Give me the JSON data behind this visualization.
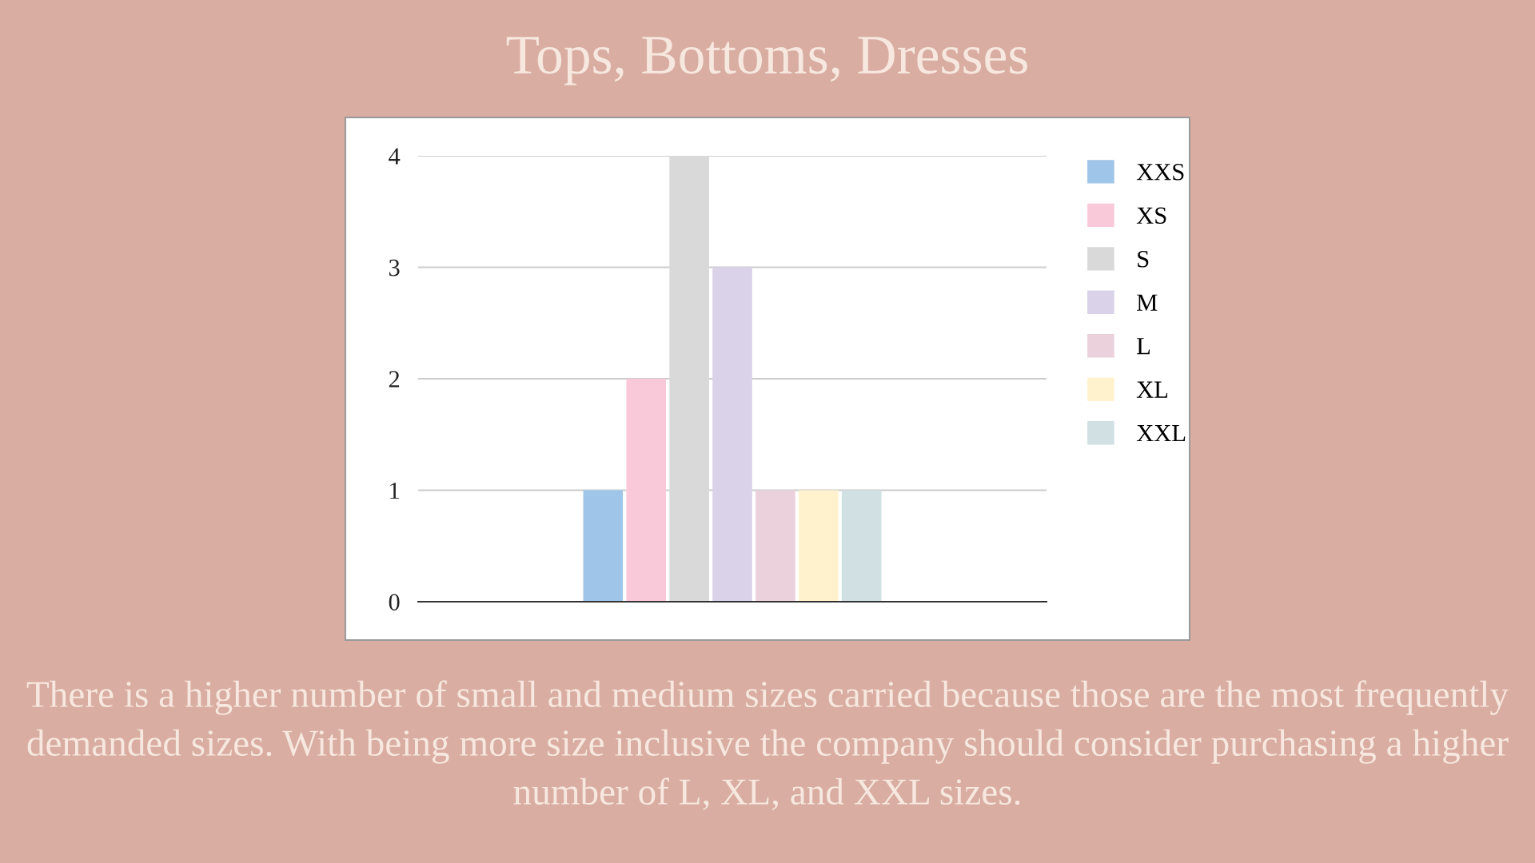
{
  "chart_data": {
    "type": "bar",
    "title": "Tops, Bottoms, Dresses",
    "categories": [
      null
    ],
    "series": [
      {
        "name": "XXS",
        "color": "#9fc5e8",
        "values": [
          1
        ]
      },
      {
        "name": "XS",
        "color": "#f9c8d9",
        "values": [
          2
        ]
      },
      {
        "name": "S",
        "color": "#d9d9d9",
        "values": [
          4
        ]
      },
      {
        "name": "M",
        "color": "#d9d2e9",
        "values": [
          3
        ]
      },
      {
        "name": "L",
        "color": "#ead1dc",
        "values": [
          1
        ]
      },
      {
        "name": "XL",
        "color": "#fff2cc",
        "values": [
          1
        ]
      },
      {
        "name": "XXL",
        "color": "#d0e0e3",
        "values": [
          1
        ]
      }
    ],
    "ylim": [
      0,
      4
    ],
    "yticks": [
      0,
      1,
      2,
      3,
      4
    ],
    "grid": "y",
    "legend": "right",
    "annotations": [
      "There is a higher number of small and medium sizes carried because those are the most frequently demanded sizes. With being more size inclusive the company should consider purchasing a higher number of L, XL, and XXL sizes."
    ]
  }
}
